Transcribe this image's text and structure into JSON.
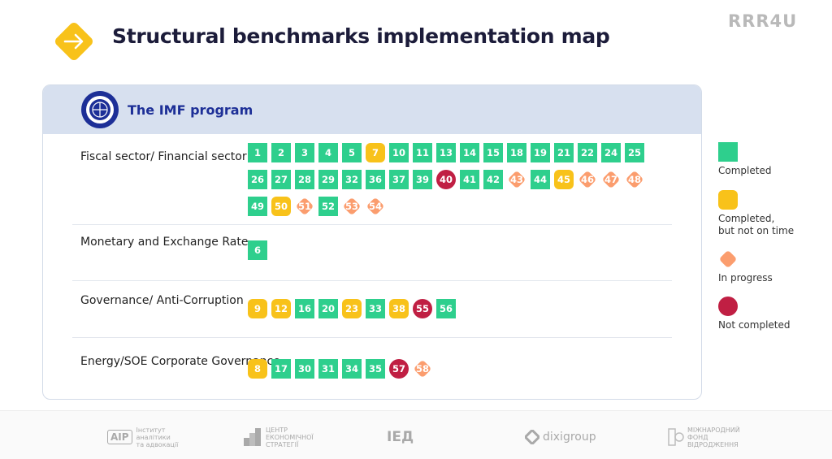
{
  "header": {
    "title": "Structural benchmarks implementation map",
    "brand": "RRR4U",
    "icon": "arrow-right-icon",
    "accent": "#f8c21a"
  },
  "card": {
    "title": "The IMF program",
    "logo": "imf-seal-logo"
  },
  "status_colors": {
    "completed": "#2ecf8d",
    "late": "#f8c21a",
    "in_progress": "#fb9d6e",
    "not_completed": "#c01f43"
  },
  "sectors": [
    {
      "label": "Fiscal sector/\nFinancial sector",
      "items": [
        {
          "n": "1",
          "s": "completed"
        },
        {
          "n": "2",
          "s": "completed"
        },
        {
          "n": "3",
          "s": "completed"
        },
        {
          "n": "4",
          "s": "completed"
        },
        {
          "n": "5",
          "s": "completed"
        },
        {
          "n": "7",
          "s": "late"
        },
        {
          "n": "10",
          "s": "completed"
        },
        {
          "n": "11",
          "s": "completed"
        },
        {
          "n": "13",
          "s": "completed"
        },
        {
          "n": "14",
          "s": "completed"
        },
        {
          "n": "15",
          "s": "completed"
        },
        {
          "n": "18",
          "s": "completed"
        },
        {
          "n": "19",
          "s": "completed"
        },
        {
          "n": "21",
          "s": "completed"
        },
        {
          "n": "22",
          "s": "completed"
        },
        {
          "n": "24",
          "s": "completed"
        },
        {
          "n": "25",
          "s": "completed"
        },
        {
          "n": "26",
          "s": "completed"
        },
        {
          "n": "27",
          "s": "completed"
        },
        {
          "n": "28",
          "s": "completed"
        },
        {
          "n": "29",
          "s": "completed"
        },
        {
          "n": "32",
          "s": "completed"
        },
        {
          "n": "36",
          "s": "completed"
        },
        {
          "n": "37",
          "s": "completed"
        },
        {
          "n": "39",
          "s": "completed"
        },
        {
          "n": "40",
          "s": "notdone"
        },
        {
          "n": "41",
          "s": "completed"
        },
        {
          "n": "42",
          "s": "completed"
        },
        {
          "n": "43",
          "s": "progress"
        },
        {
          "n": "44",
          "s": "completed"
        },
        {
          "n": "45",
          "s": "late"
        },
        {
          "n": "46",
          "s": "progress"
        },
        {
          "n": "47",
          "s": "progress"
        },
        {
          "n": "48",
          "s": "progress"
        },
        {
          "n": "49",
          "s": "completed"
        },
        {
          "n": "50",
          "s": "late"
        },
        {
          "n": "51",
          "s": "progress"
        },
        {
          "n": "52",
          "s": "completed"
        },
        {
          "n": "53",
          "s": "progress"
        },
        {
          "n": "54",
          "s": "progress"
        }
      ]
    },
    {
      "label": "Monetary and\nExchange Rate",
      "items": [
        {
          "n": "6",
          "s": "completed"
        }
      ]
    },
    {
      "label": "Governance/\nAnti-Corruption",
      "items": [
        {
          "n": "9",
          "s": "late"
        },
        {
          "n": "12",
          "s": "late"
        },
        {
          "n": "16",
          "s": "completed"
        },
        {
          "n": "20",
          "s": "completed"
        },
        {
          "n": "23",
          "s": "late"
        },
        {
          "n": "33",
          "s": "completed"
        },
        {
          "n": "38",
          "s": "late"
        },
        {
          "n": "55",
          "s": "notdone"
        },
        {
          "n": "56",
          "s": "completed"
        }
      ]
    },
    {
      "label": "Energy/SOE Corporate\nGovernance",
      "items": [
        {
          "n": "8",
          "s": "late"
        },
        {
          "n": "17",
          "s": "completed"
        },
        {
          "n": "30",
          "s": "completed"
        },
        {
          "n": "31",
          "s": "completed"
        },
        {
          "n": "34",
          "s": "completed"
        },
        {
          "n": "35",
          "s": "completed"
        },
        {
          "n": "57",
          "s": "notdone"
        },
        {
          "n": "58",
          "s": "progress"
        }
      ]
    }
  ],
  "legend": [
    {
      "s": "completed",
      "label": "Completed"
    },
    {
      "s": "late",
      "label": "Completed,\nbut not on time"
    },
    {
      "s": "progress",
      "label": "In progress"
    },
    {
      "s": "notdone",
      "label": "Not completed"
    }
  ],
  "footer": {
    "logos": [
      {
        "icon": "aip-logo",
        "mark": "AIP",
        "text": "Інститут\nаналітики\nта адвокації"
      },
      {
        "icon": "ces-logo",
        "text": "ЦЕНТР\nЕКОНОМІЧНОЇ\nСТРАТЕГІЇ"
      },
      {
        "icon": "ied-logo",
        "mark": "IЕД"
      },
      {
        "icon": "dixigroup-logo",
        "mark": "dixigroup"
      },
      {
        "icon": "irf-logo",
        "text": "МІЖНАРОДНИЙ\nФОНД\nВІДРОДЖЕННЯ"
      }
    ]
  }
}
